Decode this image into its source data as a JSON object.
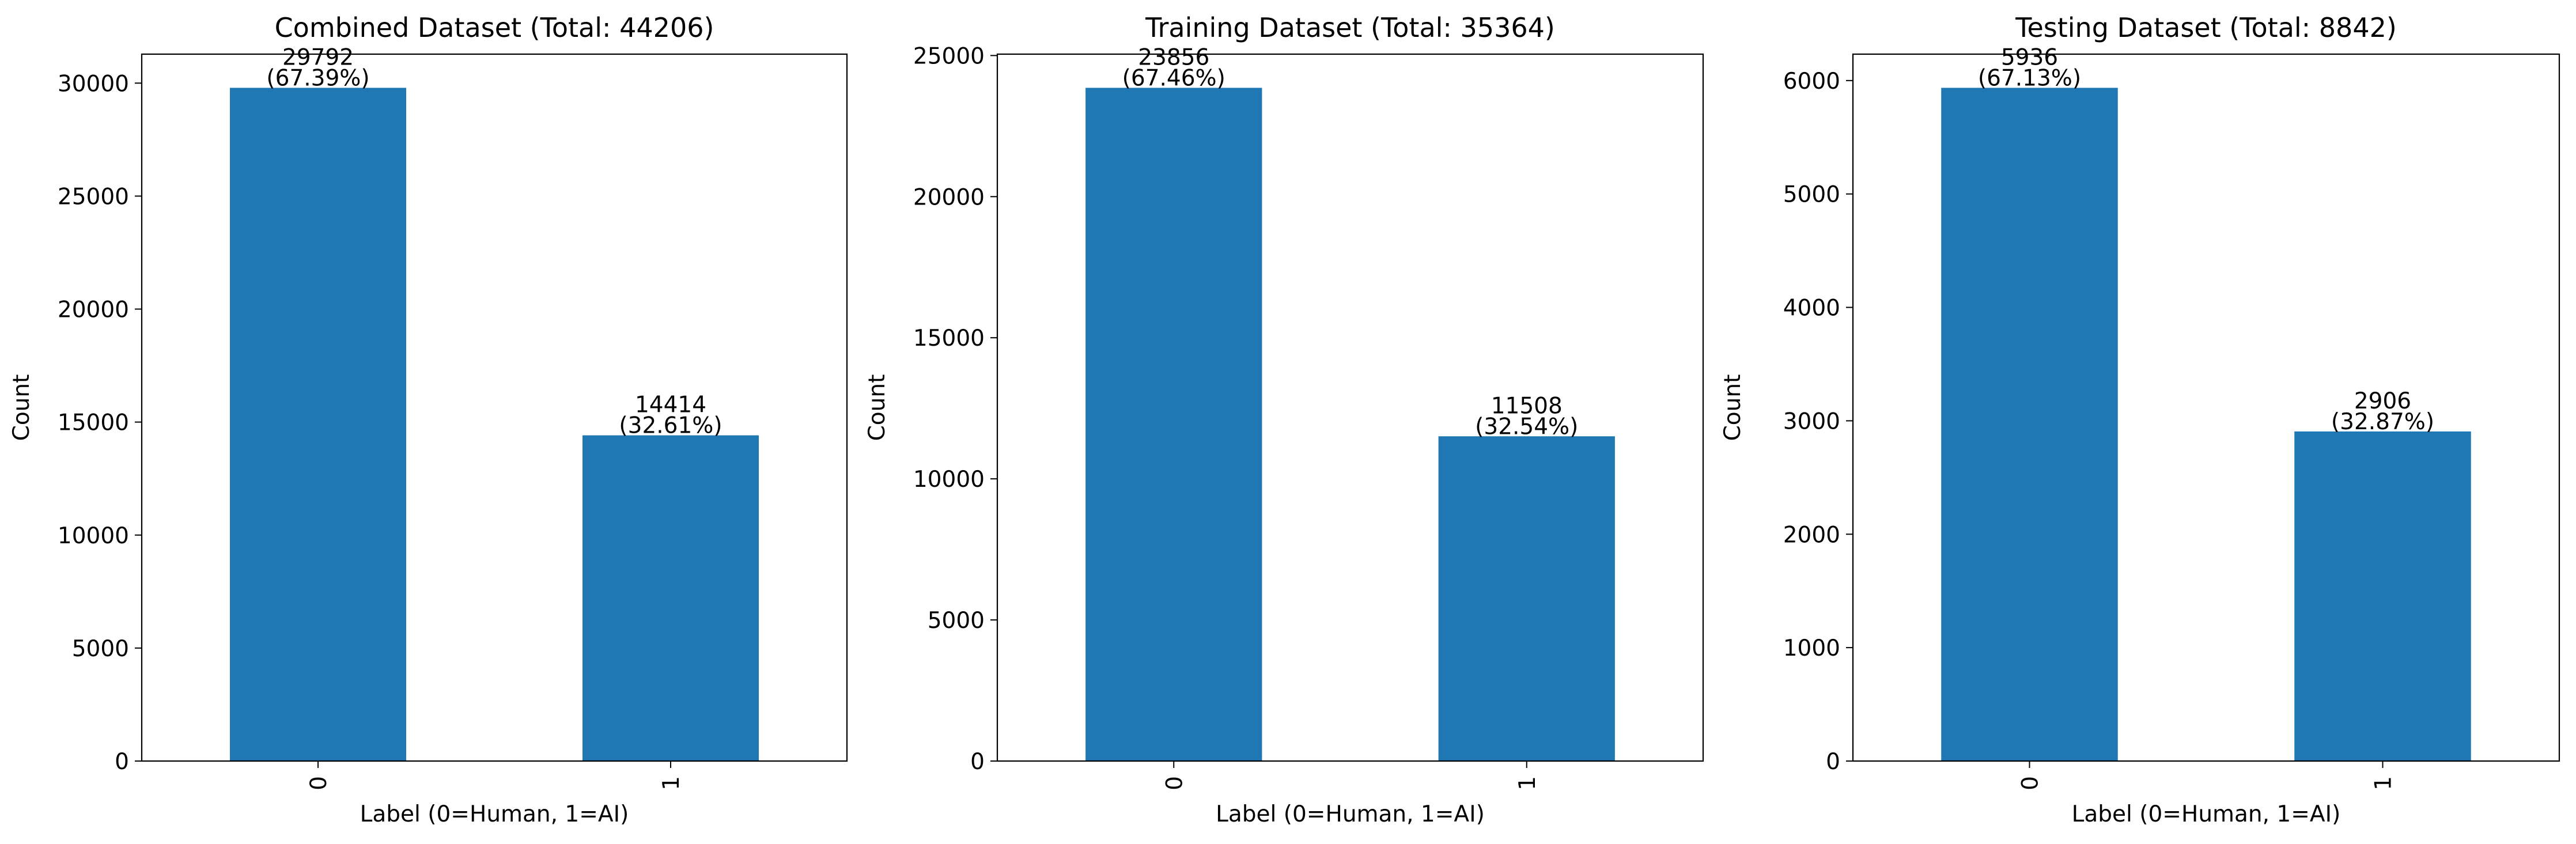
{
  "chart_data": [
    {
      "type": "bar",
      "title": "Combined Dataset (Total: 44206)",
      "xlabel": "Label (0=Human, 1=AI)",
      "ylabel": "Count",
      "categories": [
        "0",
        "1"
      ],
      "values": [
        29792,
        14414
      ],
      "bar_labels": [
        [
          "29792",
          "(67.39%)"
        ],
        [
          "14414",
          "(32.61%)"
        ]
      ],
      "ylim": [
        0,
        31281.6
      ],
      "yticks": [
        0,
        5000,
        10000,
        15000,
        20000,
        25000,
        30000
      ],
      "grid": false,
      "bar_color": "#1f77b4"
    },
    {
      "type": "bar",
      "title": "Training Dataset (Total: 35364)",
      "xlabel": "Label (0=Human, 1=AI)",
      "ylabel": "Count",
      "categories": [
        "0",
        "1"
      ],
      "values": [
        23856,
        11508
      ],
      "bar_labels": [
        [
          "23856",
          "(67.46%)"
        ],
        [
          "11508",
          "(32.54%)"
        ]
      ],
      "ylim": [
        0,
        25048.8
      ],
      "yticks": [
        0,
        5000,
        10000,
        15000,
        20000,
        25000
      ],
      "grid": false,
      "bar_color": "#1f77b4"
    },
    {
      "type": "bar",
      "title": "Testing Dataset (Total: 8842)",
      "xlabel": "Label (0=Human, 1=AI)",
      "ylabel": "Count",
      "categories": [
        "0",
        "1"
      ],
      "values": [
        5936,
        2906
      ],
      "bar_labels": [
        [
          "5936",
          "(67.13%)"
        ],
        [
          "2906",
          "(32.87%)"
        ]
      ],
      "ylim": [
        0,
        6232.8
      ],
      "yticks": [
        0,
        1000,
        2000,
        3000,
        4000,
        5000,
        6000
      ],
      "grid": false,
      "bar_color": "#1f77b4"
    }
  ]
}
